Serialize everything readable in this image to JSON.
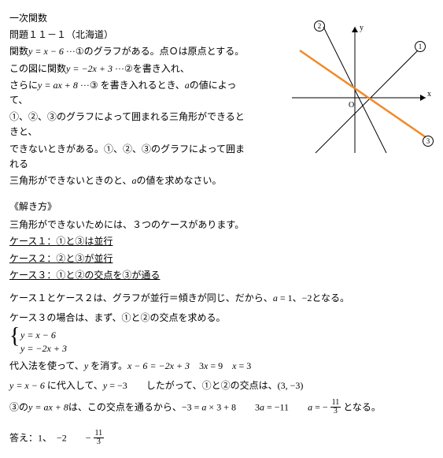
{
  "title": "一次関数",
  "problem_heading": "問題１１－１（北海道）",
  "problem_lines": [
    "関数<span class=\"italic\">y = x − 6</span> ···①のグラフがある。点Ｏは原点とする。",
    "この図に関数<span class=\"italic\">y = −2x + 3</span> ···②を書き入れ、",
    "さらに<span class=\"italic\">y = ax + 8</span> ···③ を書き入れるとき、<span class=\"italic\">a</span>の値によって、",
    "①、②、③のグラフによって囲まれる三角形ができるときと、",
    "できないときがある。①、②、③のグラフによって囲まれる",
    "三角形ができないときのと、<span class=\"italic\">a</span>の値を求めなさい。"
  ],
  "solution_heading": "《解き方》",
  "solution_intro": "三角形ができないためには、３つのケースがあります。",
  "cases": [
    "ケース１：①と③は並行",
    "ケース２：②と③が並行",
    "ケース３：①と②の交点を③が通る"
  ],
  "case12_line": "ケース１とケース２は、グラフが並行＝傾きが同じ、だから、<span class=\"italic\">a</span> = 1、−2となる。",
  "case3_line": "ケース３の場合は、まず、①と②の交点を求める。",
  "system": [
    "y = x − 6",
    "y = −2x + 3"
  ],
  "substitution_line": "代入法を使って、<span class=\"italic\">y</span> を消す。<span class=\"italic\">x − 6 = −2x + 3</span>　3<span class=\"italic\">x</span> = 9　<span class=\"italic\">x</span> = 3",
  "result_line": "<span class=\"italic\">y = x − 6</span> に代入して、<span class=\"italic\">y</span> = −3　　したがって、①と②の交点は、(3, −3)",
  "case3_result_prefix": "③の<span class=\"italic\">y = ax + 8</span>は、この交点を通るから、−3 = <span class=\"italic\">a</span> × 3 + 8　　3<span class=\"italic\">a</span> = −11　　<span class=\"italic\">a</span> = − ",
  "case3_result_suffix": " となる。",
  "frac_num": "11",
  "frac_den": "3",
  "answer_prefix": "答え：1、　−2　　− ",
  "graph": {
    "bg": "#ffffff",
    "axis_color": "#000000",
    "line1_color": "#000000",
    "line2_color": "#000000",
    "line3_color": "#ef8a2b",
    "label_O": "O",
    "label_x": "x",
    "label_y": "y",
    "label_1": "①",
    "label_2": "②",
    "label_3": "③"
  }
}
